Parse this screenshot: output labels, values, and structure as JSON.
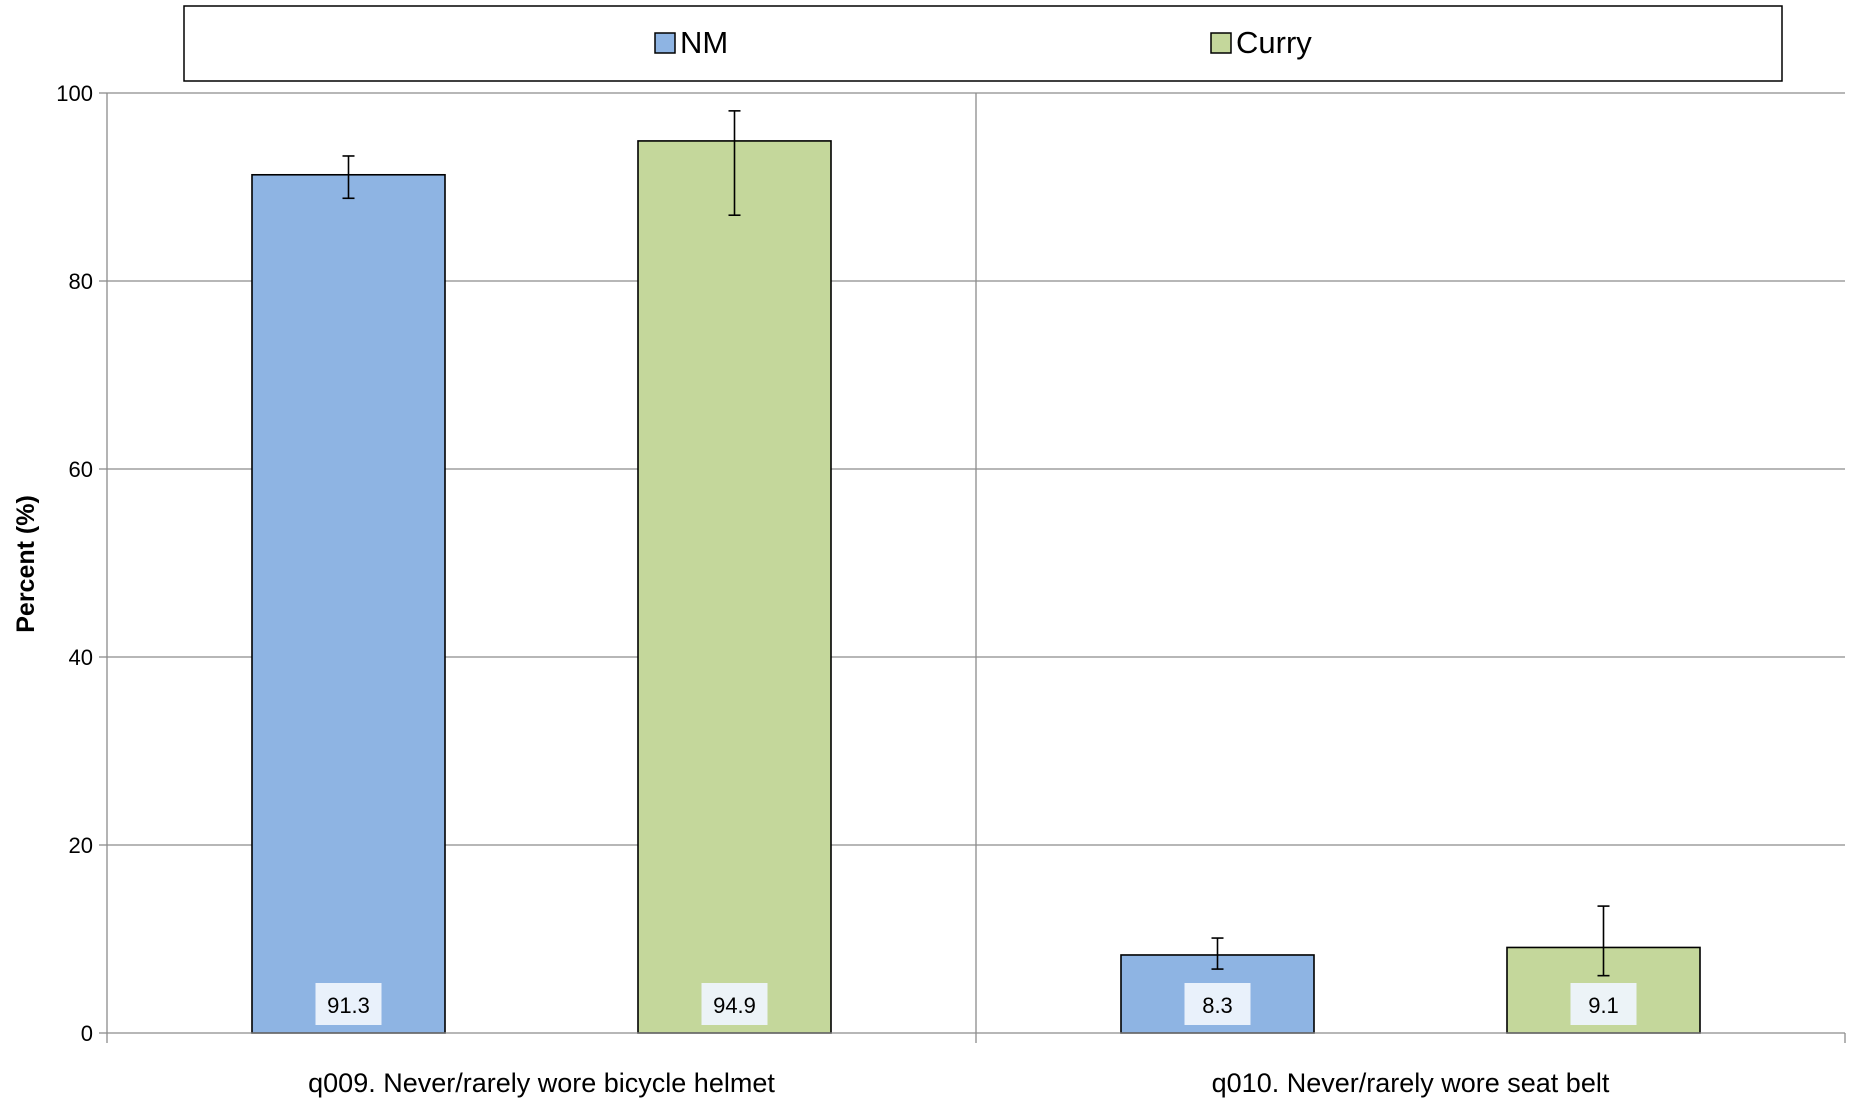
{
  "chart_data": {
    "type": "bar",
    "categories": [
      "q009. Never/rarely wore bicycle helmet",
      "q010. Never/rarely wore seat belt"
    ],
    "series": [
      {
        "name": "NM",
        "color": "#8EB4E3",
        "values": [
          91.3,
          8.3
        ],
        "error_low": [
          88.8,
          6.8
        ],
        "error_high": [
          93.3,
          10.1
        ]
      },
      {
        "name": "Curry",
        "color": "#C4D79B",
        "values": [
          94.9,
          9.1
        ],
        "error_low": [
          87.0,
          6.1
        ],
        "error_high": [
          98.1,
          13.5
        ]
      }
    ],
    "data_labels": [
      "91.3",
      "94.9",
      "8.3",
      "9.1"
    ],
    "title": "",
    "xlabel": "",
    "ylabel": "Percent (%)",
    "ylim": [
      0,
      100
    ],
    "yticks": [
      0,
      20,
      40,
      60,
      80,
      100
    ],
    "ytick_labels": [
      "0",
      "20",
      "40",
      "60",
      "80",
      "100"
    ],
    "grid": true,
    "legend_position": "top"
  }
}
